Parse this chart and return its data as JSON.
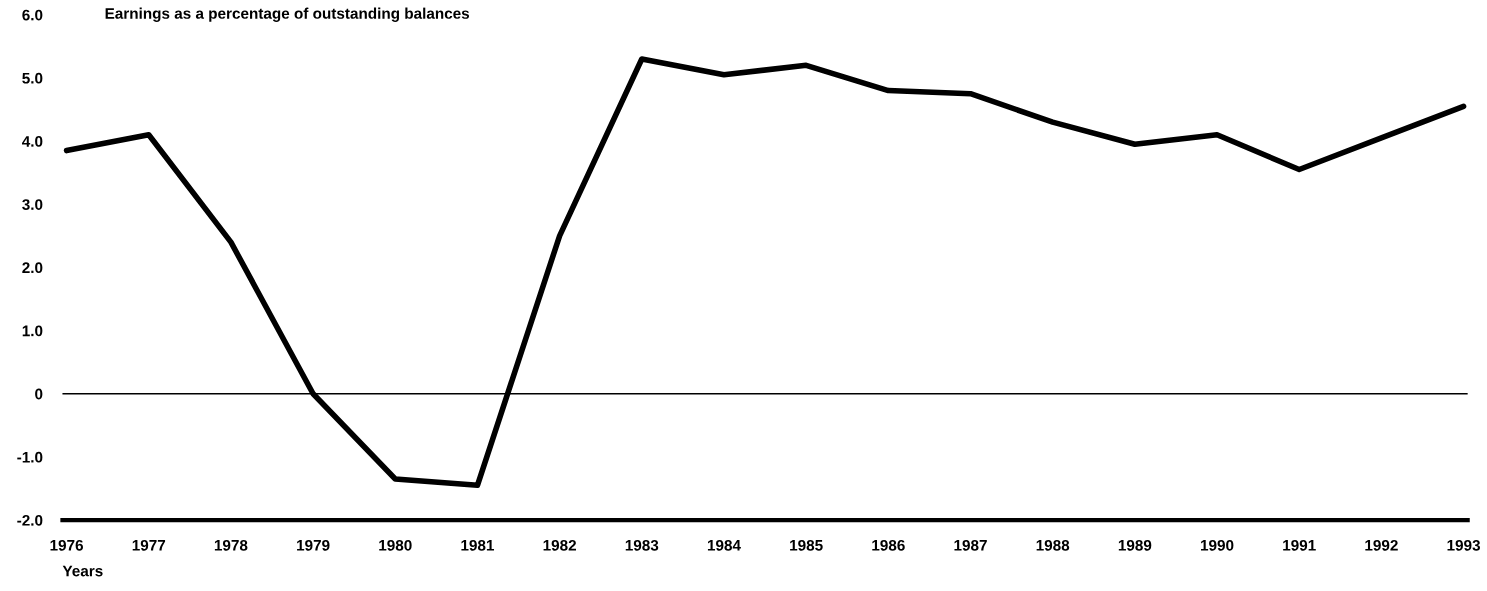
{
  "chart_data": {
    "type": "line",
    "title": "Earnings as a percentage of outstanding balances",
    "xlabel": "Years",
    "categories": [
      "1976",
      "1977",
      "1978",
      "1979",
      "1980",
      "1981",
      "1982",
      "1983",
      "1984",
      "1985",
      "1986",
      "1987",
      "1988",
      "1989",
      "1990",
      "1991",
      "1992",
      "1993"
    ],
    "series": [
      {
        "color": "#000000",
        "values": [
          3.85,
          4.1,
          2.4,
          0,
          -1.35,
          -1.45,
          2.5,
          5.3,
          5.05,
          5.2,
          4.8,
          4.75,
          4.3,
          3.95,
          4.1,
          3.55,
          4.05,
          4.55
        ]
      }
    ],
    "ylim": [
      -2,
      6
    ],
    "yticks": [
      {
        "value": -2,
        "label": "-2.0"
      },
      {
        "value": -1,
        "label": "-1.0"
      },
      0,
      {
        "value": 1,
        "label": "1.0"
      },
      {
        "value": 2,
        "label": "2.0"
      },
      {
        "value": 3,
        "label": "3.0"
      },
      {
        "value": 4,
        "label": "4.0"
      },
      {
        "value": 5,
        "label": "5.0"
      },
      {
        "value": 6,
        "label": "6.0"
      }
    ],
    "ref_lines": [
      {
        "axis": "y",
        "value": 0,
        "color": "#000000"
      }
    ],
    "grid": false,
    "legend": false,
    "marker": "none",
    "line_style": "solid"
  }
}
